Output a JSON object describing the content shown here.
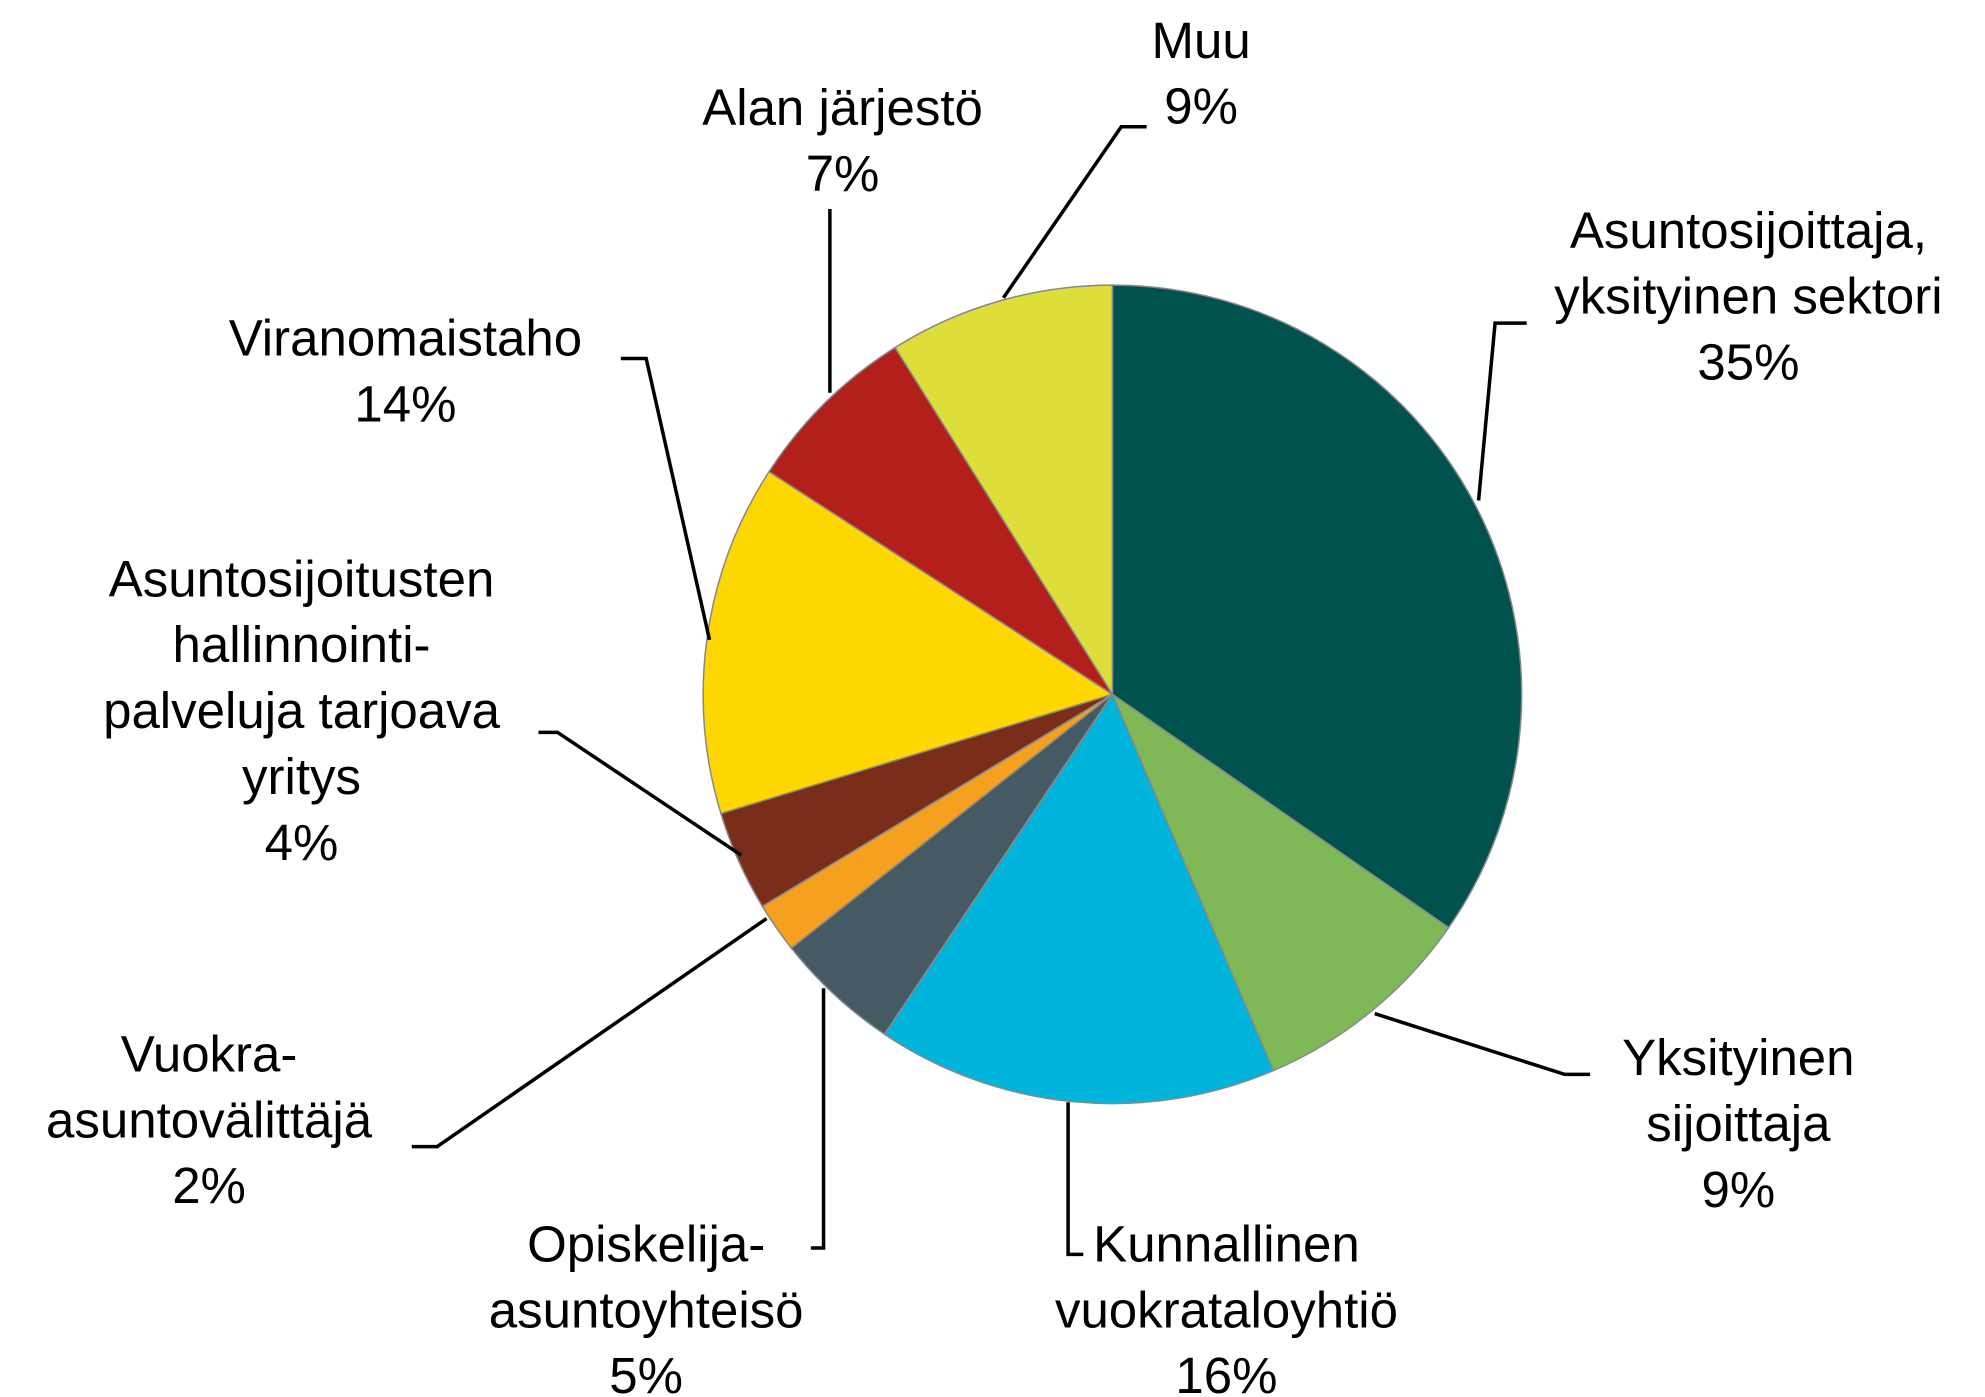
{
  "chart_data": {
    "type": "pie",
    "categories": [
      [
        "Asuntosijoittaja,",
        "yksityinen sektori"
      ],
      [
        "Yksityinen",
        "sijoittaja"
      ],
      [
        "Kunnallinen",
        "vuokrataloyhtiö"
      ],
      [
        "Opiskelija-",
        "asuntoyhteisö"
      ],
      [
        "Vuokra-",
        "asuntovälittäjä"
      ],
      [
        "Asuntosijoitusten",
        "hallinnointi-",
        "palveluja  tarjoava",
        "yritys"
      ],
      [
        "Viranomaistaho"
      ],
      [
        "Alan järjestö"
      ],
      [
        "Muu"
      ]
    ],
    "values": [
      35,
      9,
      16,
      5,
      2,
      4,
      14,
      7,
      9
    ],
    "value_labels": [
      "35%",
      "9%",
      "16%",
      "5%",
      "2%",
      "4%",
      "14%",
      "7%",
      "9%"
    ],
    "colors": [
      "#00524f",
      "#7fb957",
      "#00b4dc",
      "#465a64",
      "#f5a01e",
      "#7a2e19",
      "#ffd700",
      "#b31f1a",
      "#dede3a"
    ]
  }
}
